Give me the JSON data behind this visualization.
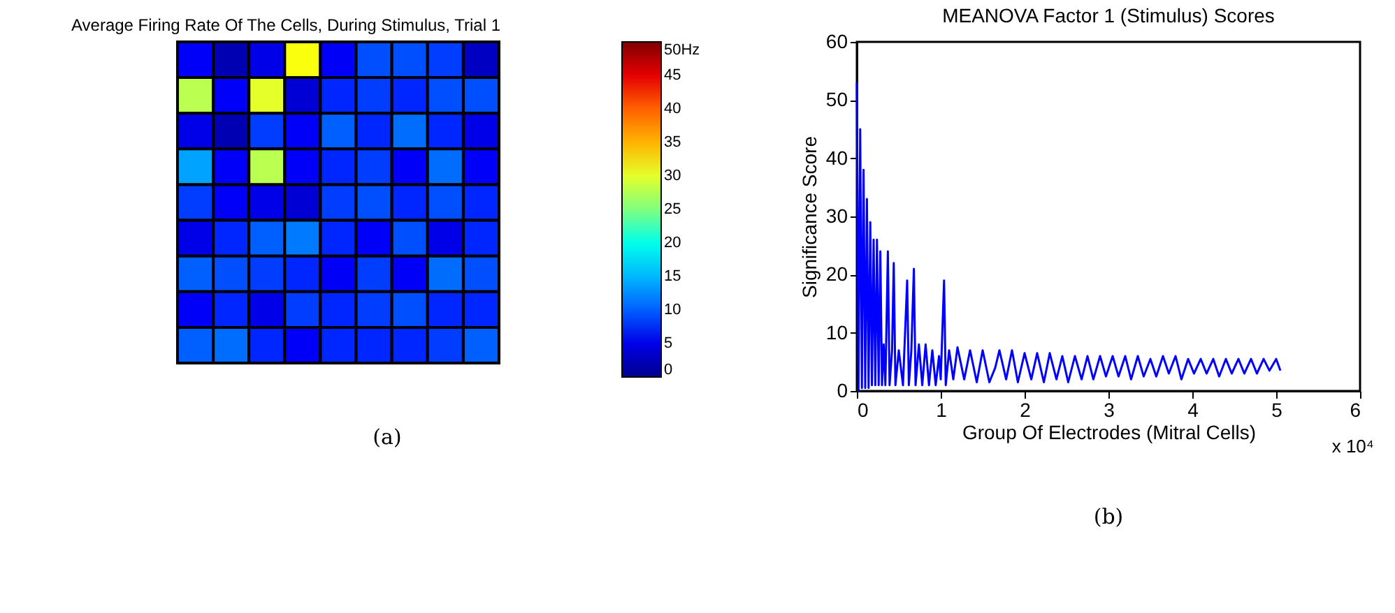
{
  "chart_data": [
    {
      "type": "heatmap",
      "title": "Average Firing Rate Of The Cells, During Stimulus, Trial 1",
      "categories": [
        null,
        null,
        null,
        null,
        null,
        null,
        null,
        null,
        null
      ],
      "y_categories": [
        null,
        null,
        null,
        null,
        null,
        null,
        null,
        null,
        null
      ],
      "cells": [
        [
          6,
          2,
          5,
          31,
          6,
          9,
          9,
          8,
          3
        ],
        [
          28,
          6,
          30,
          4,
          7,
          8,
          7,
          9,
          9
        ],
        [
          5,
          2,
          8,
          6,
          10,
          7,
          11,
          7,
          5
        ],
        [
          14,
          6,
          28,
          6,
          7,
          8,
          6,
          11,
          6
        ],
        [
          8,
          6,
          5,
          4,
          8,
          9,
          7,
          9,
          7
        ],
        [
          5,
          7,
          10,
          12,
          7,
          6,
          9,
          5,
          7
        ],
        [
          10,
          9,
          8,
          7,
          6,
          8,
          6,
          11,
          9
        ],
        [
          6,
          7,
          5,
          8,
          7,
          8,
          9,
          7,
          7
        ],
        [
          10,
          11,
          7,
          6,
          7,
          7,
          7,
          8,
          10
        ]
      ],
      "clim": [
        0,
        50
      ],
      "cticks": [
        0,
        5,
        10,
        15,
        20,
        25,
        30,
        35,
        40,
        45,
        {
          "value": 50,
          "label": "50Hz"
        }
      ],
      "tick_labels": false,
      "annotations": [
        "(a)"
      ]
    },
    {
      "type": "line",
      "title": "MEANOVA Factor 1 (Stimulus) Scores",
      "xlabel": "Group Of Electrodes (Mitral Cells)",
      "ylabel": "Significance Score",
      "x": [
        0,
        0.02,
        0.04,
        0.06,
        0.08,
        0.1,
        0.12,
        0.14,
        0.16,
        0.18,
        0.2,
        0.22,
        0.24,
        0.26,
        0.28,
        0.3,
        0.32,
        0.34,
        0.37,
        0.39,
        0.42,
        0.44,
        0.46,
        0.5,
        0.55,
        0.6,
        0.62,
        0.65,
        0.68,
        0.7,
        0.74,
        0.78,
        0.82,
        0.86,
        0.9,
        0.94,
        0.98,
        1.0,
        1.04,
        1.06,
        1.1,
        1.15,
        1.2,
        1.28,
        1.35,
        1.43,
        1.5,
        1.58,
        1.65,
        1.7,
        1.78,
        1.85,
        1.92,
        2.0,
        2.08,
        2.15,
        2.23,
        2.3,
        2.38,
        2.45,
        2.52,
        2.6,
        2.68,
        2.75,
        2.82,
        2.9,
        2.97,
        3.05,
        3.12,
        3.2,
        3.27,
        3.35,
        3.42,
        3.5,
        3.57,
        3.65,
        3.72,
        3.8,
        3.87,
        3.95,
        4.02,
        4.1,
        4.17,
        4.25,
        4.32,
        4.4,
        4.47,
        4.55,
        4.62,
        4.7,
        4.77,
        4.85,
        4.92,
        5.0,
        5.05
      ],
      "series": [
        {
          "color": "#0000ff",
          "values": [
            53,
            0,
            45,
            0.5,
            38,
            0.5,
            33,
            0.5,
            29,
            1,
            26,
            1,
            26,
            1,
            24,
            1,
            8,
            1,
            24,
            1,
            7,
            22,
            1,
            7,
            1,
            19,
            1,
            7,
            21,
            1,
            8,
            1,
            8,
            1,
            7,
            1,
            6,
            2,
            19,
            1,
            7,
            2,
            7.5,
            2,
            7,
            1.5,
            7,
            1.5,
            4,
            7,
            2,
            7,
            1.5,
            6.5,
            2,
            6.5,
            1.5,
            6.5,
            2,
            6,
            1.5,
            6,
            2,
            6,
            2,
            6,
            2.5,
            6,
            2.5,
            6,
            2,
            6,
            2.5,
            5.5,
            2.5,
            6,
            3,
            6,
            2,
            5.5,
            3,
            5.5,
            3,
            5.5,
            2.5,
            5.5,
            3,
            5.5,
            3,
            5.5,
            3,
            5.5,
            3.5,
            5.5,
            3.5
          ]
        }
      ],
      "xlim": [
        0,
        6
      ],
      "xticks": [
        0,
        1,
        2,
        3,
        4,
        5,
        6
      ],
      "ylim": [
        0,
        60
      ],
      "yticks": [
        0,
        10,
        20,
        30,
        40,
        50,
        60
      ],
      "grid": false,
      "line_style": "solid",
      "marker": "none",
      "annotations": [
        "x 10⁴",
        "(b)"
      ]
    }
  ]
}
